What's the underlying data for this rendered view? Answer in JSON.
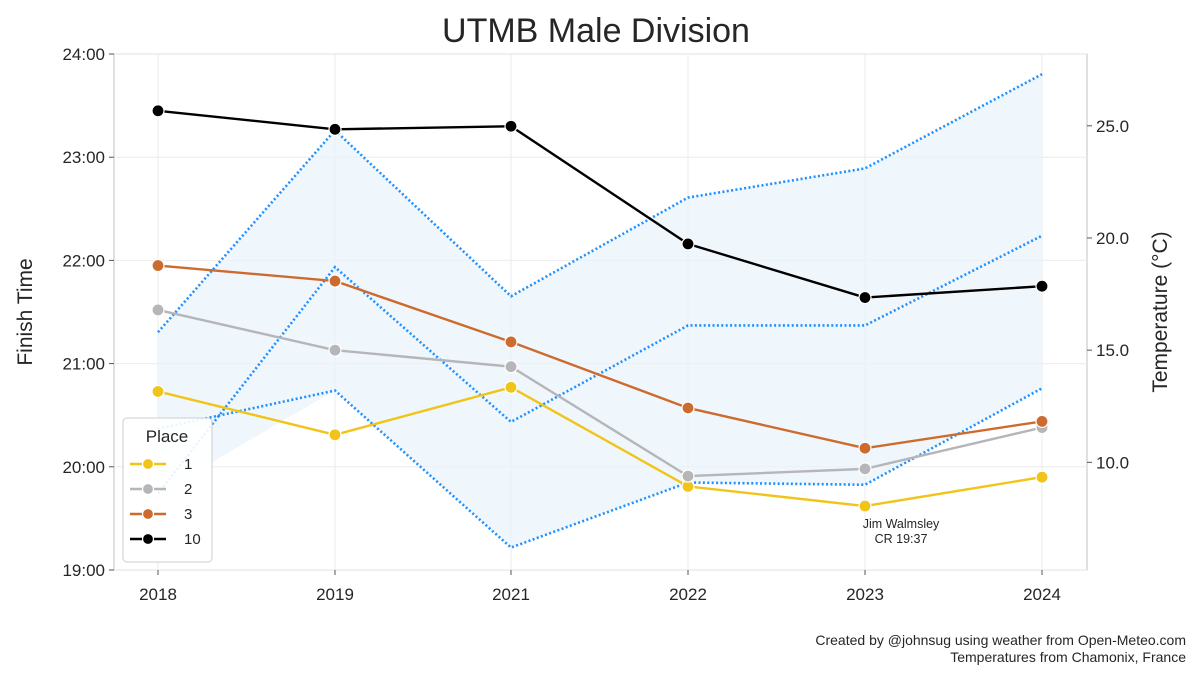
{
  "chart_data": {
    "type": "line",
    "title": "UTMB Male Division",
    "xlabel": "",
    "ylabel": "Finish Time",
    "y2label": "Temperature (°C)",
    "categories": [
      "2018",
      "2019",
      "2021",
      "2022",
      "2023",
      "2024"
    ],
    "ylim": [
      19,
      24
    ],
    "y_ticks": [
      "19:00",
      "20:00",
      "21:00",
      "22:00",
      "23:00",
      "24:00"
    ],
    "y2lim": [
      5.2,
      28.2
    ],
    "y2_ticks": [
      "10.0",
      "15.0",
      "20.0",
      "25.0"
    ],
    "grid": true,
    "legend": {
      "title": "Place",
      "position": "lower-left"
    },
    "series": [
      {
        "name": "1",
        "color": "#f0c419",
        "values": [
          20.73,
          20.31,
          20.77,
          19.81,
          19.62,
          19.9
        ]
      },
      {
        "name": "2",
        "color": "#b6b6b9",
        "values": [
          21.52,
          21.13,
          20.97,
          19.91,
          19.98,
          20.38
        ]
      },
      {
        "name": "3",
        "color": "#cd6b2f",
        "values": [
          21.95,
          21.8,
          21.21,
          20.57,
          20.18,
          20.44
        ]
      },
      {
        "name": "10",
        "color": "#000000",
        "values": [
          23.45,
          23.27,
          23.3,
          22.16,
          21.64,
          21.75
        ]
      }
    ],
    "temperature": {
      "color": "#1e90ff",
      "fill_color": "#eaf4fb",
      "max": [
        15.8,
        24.8,
        17.4,
        21.8,
        23.1,
        27.3
      ],
      "mean": [
        8.6,
        18.7,
        11.8,
        16.1,
        16.1,
        20.1
      ],
      "min": [
        11.5,
        13.2,
        6.2,
        9.1,
        9.0,
        13.3
      ]
    },
    "annotations": [
      {
        "x": "2023",
        "lines": [
          "Jim Walmsley",
          "CR 19:37"
        ]
      }
    ]
  },
  "footer": {
    "line1": "Created by @johnsug using weather from Open-Meteo.com",
    "line2": "Temperatures from Chamonix, France"
  }
}
